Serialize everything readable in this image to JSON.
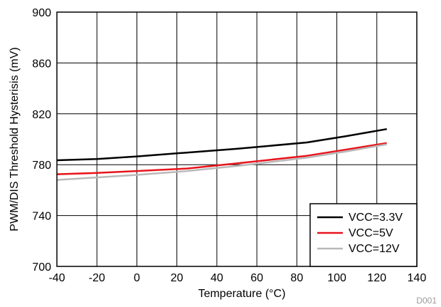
{
  "chart_data": {
    "type": "line",
    "title": "",
    "xlabel": "Temperature (°C)",
    "ylabel": "PWM/DIS Threshold Hysterisis (mV)",
    "xlim": [
      -40,
      140
    ],
    "ylim": [
      700,
      900
    ],
    "xticks": [
      -40,
      -20,
      0,
      20,
      40,
      60,
      80,
      100,
      120,
      140
    ],
    "yticks": [
      700,
      740,
      780,
      820,
      860,
      900
    ],
    "grid": true,
    "legend_position": "bottom-right",
    "series": [
      {
        "name": "VCC=3.3V",
        "color": "#000000",
        "x": [
          -40,
          -20,
          0,
          25,
          50,
          85,
          105,
          125
        ],
        "y": [
          783.5,
          784.5,
          786.5,
          789.5,
          792.5,
          797.5,
          802.5,
          808
        ]
      },
      {
        "name": "VCC=5V",
        "color": "#e8141c",
        "x": [
          -40,
          -20,
          0,
          25,
          50,
          85,
          105,
          125
        ],
        "y": [
          772.5,
          773.5,
          775,
          777,
          781,
          787,
          792,
          797
        ]
      },
      {
        "name": "VCC=12V",
        "color": "#b9b9b9",
        "x": [
          -40,
          -20,
          0,
          25,
          50,
          85,
          105,
          125
        ],
        "y": [
          768,
          770,
          772,
          775,
          779,
          785.5,
          790.5,
          796
        ]
      }
    ],
    "annotation": "D001"
  }
}
